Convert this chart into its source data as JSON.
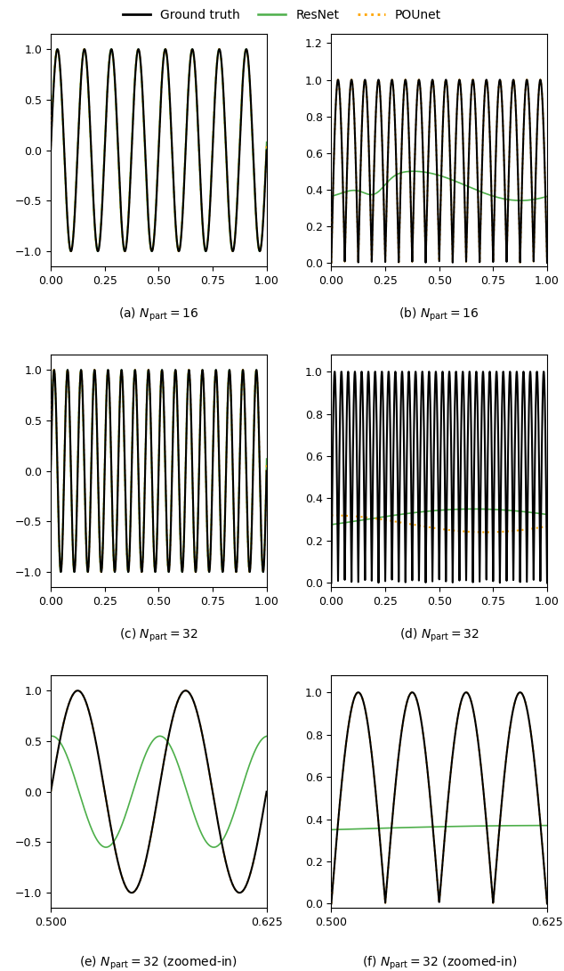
{
  "subplot_labels": [
    "(a) $N_\\mathrm{part} = 16$",
    "(b) $N_\\mathrm{part} = 16$",
    "(c) $N_\\mathrm{part} = 32$",
    "(d) $N_\\mathrm{part} = 32$",
    "(e) $N_\\mathrm{part} = 32$ (zoomed-in)",
    "(f) $N_\\mathrm{part} = 32$ (zoomed-in)"
  ],
  "n_points": 3000,
  "gt_color": "black",
  "resnet_color": "#4daf4a",
  "pounet_color": "orange",
  "gt_lw": 1.5,
  "resnet_lw": 1.2,
  "pounet_lw": 1.5,
  "freq_a": 8,
  "freq_b": 16,
  "freq_c": 16,
  "freq_d": 32,
  "freq_e": 16,
  "freq_f": 32
}
